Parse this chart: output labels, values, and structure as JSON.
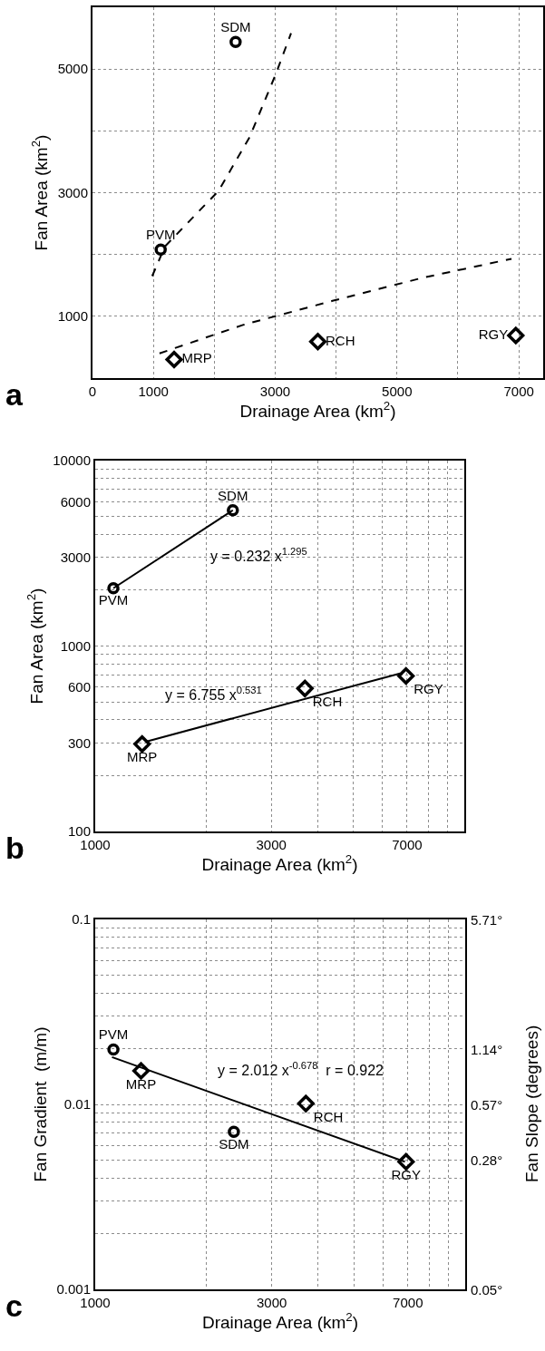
{
  "chart_data": [
    {
      "type": "scatter",
      "xlabel": "Drainage Area (km$^{2}$)",
      "ylabel": "Fan Area (km$^{2}$)",
      "grid": true,
      "xlim": [
        0,
        7400
      ],
      "xticks": [
        0,
        1000,
        {
          "value": 2000,
          "label": null
        },
        3000,
        {
          "value": 4000,
          "label": null
        },
        5000,
        {
          "value": 6000,
          "label": null
        },
        7000
      ],
      "ylim": [
        0,
        6000
      ],
      "yticks": [
        1000,
        {
          "value": 2000,
          "label": null
        },
        3000,
        {
          "value": 4000,
          "label": null
        },
        5000
      ],
      "series": [
        {
          "name": "PVM",
          "marker": "circle",
          "color": "#000000",
          "x": [
            1120
          ],
          "values": [
            2080
          ]
        },
        {
          "name": "SDM",
          "marker": "circle",
          "color": "#000000",
          "x": [
            2350
          ],
          "values": [
            5440
          ]
        },
        {
          "name": "MRP",
          "marker": "diamond",
          "color": "#000000",
          "x": [
            1340
          ],
          "values": [
            300
          ]
        },
        {
          "name": "RCH",
          "marker": "diamond",
          "color": "#000000",
          "x": [
            3700
          ],
          "values": [
            590
          ]
        },
        {
          "name": "RGY",
          "marker": "diamond",
          "color": "#000000",
          "x": [
            6950
          ],
          "values": [
            690
          ]
        },
        {
          "type": "line",
          "marker": "none",
          "line_style": "dashed",
          "color": "#000000",
          "x": [
            980,
            1190,
            2070,
            2580,
            3010,
            3260
          ],
          "values": [
            1650,
            2130,
            3030,
            3900,
            4920,
            5580
          ]
        },
        {
          "type": "line",
          "marker": "none",
          "line_style": "dashed",
          "color": "#000000",
          "x": [
            1100,
            2470,
            3940,
            5410,
            6880
          ],
          "values": [
            400,
            860,
            1250,
            1620,
            1930
          ]
        }
      ],
      "annotations": [
        "a"
      ]
    },
    {
      "type": "scatter",
      "xlabel": "Drainage Area (km$^{2}$)",
      "ylabel": "Fan Area (km$^{2}$)",
      "grid": true,
      "log": "xy",
      "xlim": [
        1000,
        10000
      ],
      "xticks": [
        1000,
        {
          "value": 2000,
          "label": null
        },
        3000,
        {
          "value": 4000,
          "label": null
        },
        {
          "value": 5000,
          "label": null
        },
        {
          "value": 6000,
          "label": null
        },
        7000,
        {
          "value": 8000,
          "label": null
        },
        {
          "value": 9000,
          "label": null
        }
      ],
      "ylim": [
        100,
        10000
      ],
      "yticks": [
        100,
        {
          "value": 200,
          "label": null
        },
        300,
        {
          "value": 400,
          "label": null
        },
        {
          "value": 500,
          "label": null
        },
        600,
        {
          "value": 700,
          "label": null
        },
        {
          "value": 800,
          "label": null
        },
        {
          "value": 900,
          "label": null
        },
        1000,
        {
          "value": 2000,
          "label": null
        },
        3000,
        {
          "value": 4000,
          "label": null
        },
        {
          "value": 5000,
          "label": null
        },
        6000,
        {
          "value": 7000,
          "label": null
        },
        {
          "value": 8000,
          "label": null
        },
        {
          "value": 9000,
          "label": null
        },
        10000
      ],
      "series": [
        {
          "name": "PVM",
          "marker": "circle",
          "color": "#000000",
          "x": [
            1120
          ],
          "values": [
            2050
          ]
        },
        {
          "name": "SDM",
          "marker": "circle",
          "color": "#000000",
          "x": [
            2360
          ],
          "values": [
            5400
          ]
        },
        {
          "name": "MRP",
          "marker": "diamond",
          "color": "#000000",
          "x": [
            1340
          ],
          "values": [
            296
          ]
        },
        {
          "name": "RCH",
          "marker": "diamond",
          "color": "#000000",
          "x": [
            3700
          ],
          "values": [
            590
          ]
        },
        {
          "name": "RGY",
          "marker": "diamond",
          "color": "#000000",
          "x": [
            6950
          ],
          "values": [
            690
          ]
        },
        {
          "type": "line",
          "marker": "none",
          "line_style": "solid",
          "color": "#000000",
          "x": [
            1120,
            2360
          ],
          "values": [
            2050,
            5400
          ]
        },
        {
          "type": "line",
          "marker": "none",
          "line_style": "solid",
          "color": "#000000",
          "x": [
            1379,
            6700
          ],
          "values": [
            306,
            712
          ]
        }
      ],
      "annotations": [
        "b",
        "y = 0.232 x$^{1.295}$",
        "y = 6.755 x$^{0.531}$"
      ]
    },
    {
      "type": "scatter",
      "xlabel": "Drainage Area (km$^{2}$)",
      "ylabel": "Fan Gradient  (m/m)",
      "grid": true,
      "log": "xy",
      "xlim": [
        1000,
        10000
      ],
      "xticks": [
        1000,
        {
          "value": 2000,
          "label": null
        },
        3000,
        {
          "value": 4000,
          "label": null
        },
        {
          "value": 5000,
          "label": null
        },
        {
          "value": 6000,
          "label": null
        },
        7000,
        {
          "value": 8000,
          "label": null
        },
        {
          "value": 9000,
          "label": null
        }
      ],
      "ylim": [
        0.001,
        0.1
      ],
      "yticks": [
        0.001,
        {
          "value": 0.002,
          "label": null
        },
        {
          "value": 0.003,
          "label": null
        },
        {
          "value": 0.004,
          "label": null
        },
        {
          "value": 0.005,
          "label": null
        },
        {
          "value": 0.006,
          "label": null
        },
        {
          "value": 0.007,
          "label": null
        },
        {
          "value": 0.008,
          "label": null
        },
        {
          "value": 0.009,
          "label": null
        },
        0.01,
        {
          "value": 0.02,
          "label": null
        },
        {
          "value": 0.03,
          "label": null
        },
        {
          "value": 0.04,
          "label": null
        },
        {
          "value": 0.05,
          "label": null
        },
        {
          "value": 0.06,
          "label": null
        },
        {
          "value": 0.07,
          "label": null
        },
        {
          "value": 0.08,
          "label": null
        },
        {
          "value": 0.09,
          "label": null
        },
        0.1
      ],
      "series": [
        {
          "name": "PVM",
          "marker": "circle",
          "color": "#000000",
          "x": [
            1120
          ],
          "values": [
            0.0198
          ]
        },
        {
          "name": "MRP",
          "marker": "diamond",
          "color": "#000000",
          "x": [
            1330
          ],
          "values": [
            0.0152
          ]
        },
        {
          "name": "RCH",
          "marker": "diamond",
          "color": "#000000",
          "x": [
            3710
          ],
          "values": [
            0.0101
          ]
        },
        {
          "name": "SDM",
          "marker": "circle",
          "color": "#000000",
          "x": [
            2370
          ],
          "values": [
            0.0071
          ]
        },
        {
          "name": "RGY",
          "marker": "diamond",
          "color": "#000000",
          "x": [
            6920
          ],
          "values": [
            0.0049
          ]
        },
        {
          "type": "line",
          "marker": "none",
          "line_style": "solid",
          "color": "#000000",
          "x": [
            1110,
            6870
          ],
          "values": [
            0.018,
            0.0049
          ]
        }
      ],
      "annotations": [
        "c",
        "y = 2.012 x$^{-0.678}$  r = 0.922",
        "5.71°",
        "1.14°",
        "0.57°",
        "0.28°",
        "0.05°",
        "Fan Slope (degrees)"
      ]
    }
  ]
}
